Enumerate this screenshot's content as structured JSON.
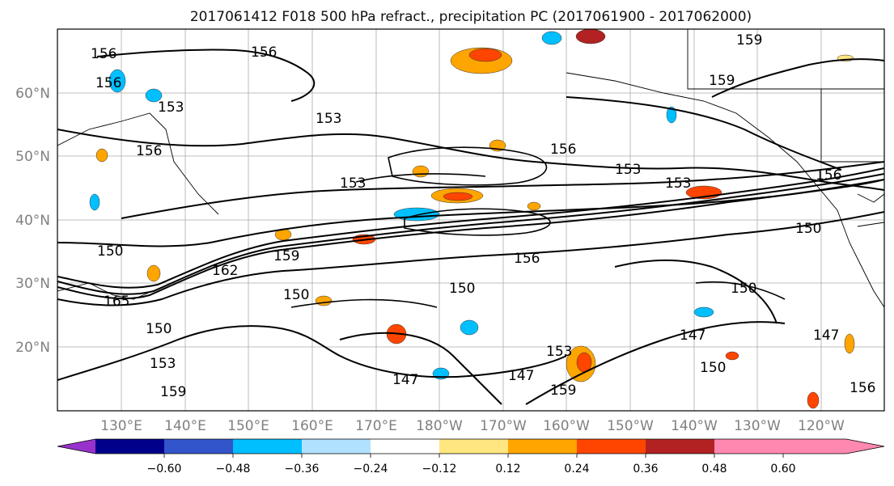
{
  "map": {
    "title": "2017061412 F018 500 hPa refract., precipitation PC (2017061900 - 2017062000)",
    "lat_labels": [
      "60°N",
      "50°N",
      "40°N",
      "30°N",
      "20°N"
    ],
    "lon_labels": [
      "130°E",
      "140°E",
      "150°E",
      "160°E",
      "170°E",
      "180°W",
      "170°W",
      "160°W",
      "150°W",
      "140°W",
      "130°W",
      "120°W"
    ],
    "contour_labels": [
      "156",
      "156",
      "156",
      "159",
      "153",
      "153",
      "156",
      "156",
      "153",
      "153",
      "150",
      "159",
      "165",
      "150",
      "150",
      "162",
      "150",
      "147",
      "147",
      "150",
      "147",
      "156",
      "159",
      "153",
      "159",
      "156",
      "150",
      "150",
      "153",
      "159",
      "147",
      "153",
      "156"
    ],
    "colorbar": {
      "colors": [
        "#9932cc",
        "#00008b",
        "#3355cc",
        "#00bfff",
        "#b0e2ff",
        "#ffffff",
        "#ffe680",
        "#ffa500",
        "#ff4500",
        "#b22222",
        "#ff88b0"
      ],
      "tick_labels": [
        "−0.60",
        "−0.48",
        "−0.36",
        "−0.24",
        "−0.12",
        "0.12",
        "0.24",
        "0.36",
        "0.48",
        "0.60"
      ]
    }
  }
}
